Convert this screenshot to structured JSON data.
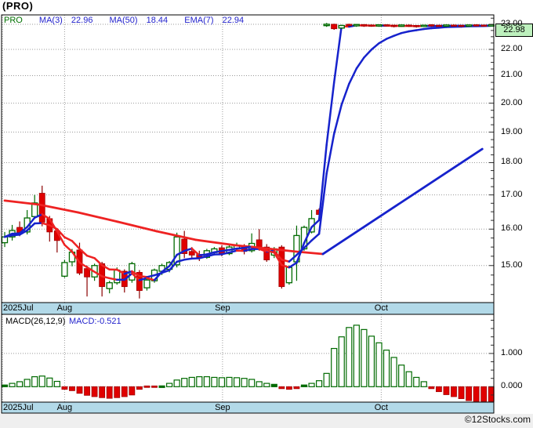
{
  "header": {
    "title": "(PRO)"
  },
  "legend": {
    "symbol": "PRO",
    "items": [
      {
        "label": "MA(3)",
        "value": "22.96"
      },
      {
        "label": "MA(50)",
        "value": "18.44"
      },
      {
        "label": "EMA(7)",
        "value": "22.94"
      }
    ]
  },
  "price_axis": {
    "ticks": [
      {
        "label": "23.00",
        "value": 23
      },
      {
        "label": "22.00",
        "value": 22
      },
      {
        "label": "21.00",
        "value": 21
      },
      {
        "label": "20.00",
        "value": 20
      },
      {
        "label": "19.00",
        "value": 19
      },
      {
        "label": "18.00",
        "value": 18
      },
      {
        "label": "17.00",
        "value": 17
      },
      {
        "label": "16.00",
        "value": 16
      },
      {
        "label": "15.00",
        "value": 15
      }
    ],
    "current_price": "22.98"
  },
  "macd_panel": {
    "label": "MACD(26,12,9)",
    "value_label": "MACD:-0.521",
    "ticks": [
      {
        "label": "1.000",
        "value": 1
      },
      {
        "label": "0.000",
        "value": 0
      }
    ]
  },
  "footer": {
    "watermark": "©12Stocks.com"
  },
  "colors": {
    "up": "#006a00",
    "down": "#e00000",
    "down_wick": "#8a0000",
    "line_up": "#1622cc",
    "line_down": "#ee2222",
    "strip": "#b2d9e8",
    "grid": "#999999",
    "price_box_bg": "#bdf0bd",
    "legend_text": "#2222cc",
    "symbol_text": "#007000",
    "footer_bg": "#efefef"
  },
  "chart_data": {
    "type": "candlestick",
    "title": "(PRO)",
    "y_scale": "log",
    "ylim": [
      14.05,
      23.4
    ],
    "months": [
      {
        "label": "2025Jul",
        "i": 0,
        "align": "left"
      },
      {
        "label": "Aug",
        "i": 8,
        "align": "center"
      },
      {
        "label": "Sep",
        "i": 29.1,
        "align": "center"
      },
      {
        "label": "Oct",
        "i": 50.3,
        "align": "center"
      }
    ],
    "last_close": 22.98,
    "indicators": {
      "ma3": 22.96,
      "ma50": 18.44,
      "ema7": 22.94,
      "macd": -0.521
    },
    "candles": [
      [
        15.62,
        15.92,
        15.5,
        15.78
      ],
      [
        15.78,
        16.12,
        15.68,
        15.96
      ],
      [
        16.05,
        16.22,
        15.8,
        15.9
      ],
      [
        15.92,
        16.55,
        15.85,
        16.32
      ],
      [
        16.36,
        17.0,
        16.3,
        16.76
      ],
      [
        17.05,
        17.28,
        16.08,
        16.2
      ],
      [
        16.3,
        16.38,
        15.65,
        15.92
      ],
      [
        15.95,
        16.02,
        15.35,
        15.68
      ],
      [
        14.72,
        15.15,
        14.68,
        15.08
      ],
      [
        15.1,
        15.45,
        14.98,
        15.36
      ],
      [
        15.42,
        15.62,
        14.75,
        14.8
      ],
      [
        14.92,
        15.0,
        14.2,
        14.7
      ],
      [
        14.7,
        15.05,
        14.6,
        15.0
      ],
      [
        15.05,
        15.1,
        14.2,
        14.45
      ],
      [
        14.4,
        14.6,
        14.28,
        14.55
      ],
      [
        14.55,
        14.95,
        14.5,
        14.88
      ],
      [
        14.85,
        14.9,
        14.3,
        14.45
      ],
      [
        14.62,
        15.1,
        14.55,
        15.05
      ],
      [
        14.82,
        14.88,
        14.15,
        14.35
      ],
      [
        14.42,
        14.68,
        14.35,
        14.62
      ],
      [
        14.6,
        14.92,
        14.55,
        14.88
      ],
      [
        14.85,
        15.05,
        14.75,
        15.0
      ],
      [
        14.9,
        15.12,
        14.82,
        15.08
      ],
      [
        15.02,
        15.9,
        14.95,
        15.78
      ],
      [
        15.72,
        15.95,
        15.2,
        15.32
      ],
      [
        15.38,
        15.5,
        15.18,
        15.28
      ],
      [
        15.3,
        15.4,
        15.12,
        15.22
      ],
      [
        15.22,
        15.45,
        15.18,
        15.4
      ],
      [
        15.35,
        15.5,
        15.28,
        15.45
      ],
      [
        15.48,
        15.55,
        15.25,
        15.32
      ],
      [
        15.32,
        15.55,
        15.28,
        15.5
      ],
      [
        15.45,
        15.62,
        15.38,
        15.55
      ],
      [
        15.52,
        15.58,
        15.3,
        15.38
      ],
      [
        15.4,
        15.88,
        15.35,
        15.6
      ],
      [
        15.7,
        16.0,
        15.4,
        15.45
      ],
      [
        15.5,
        15.58,
        15.1,
        15.15
      ],
      [
        15.28,
        15.5,
        15.2,
        15.45
      ],
      [
        15.5,
        15.55,
        14.4,
        14.45
      ],
      [
        14.55,
        15.0,
        14.5,
        14.95
      ],
      [
        15.1,
        16.1,
        14.6,
        15.82
      ],
      [
        15.45,
        16.1,
        15.4,
        16.05
      ],
      [
        15.92,
        16.55,
        15.88,
        16.3
      ],
      [
        16.55,
        16.6,
        16.35,
        16.42
      ],
      [
        22.95,
        23.05,
        22.9,
        23.0
      ],
      [
        23.0,
        23.02,
        22.78,
        22.82
      ],
      [
        22.85,
        22.98,
        22.82,
        22.95
      ],
      [
        23.0,
        23.02,
        22.92,
        22.94
      ],
      [
        22.94,
        23.0,
        22.9,
        22.99
      ],
      [
        22.99,
        23.0,
        22.9,
        22.93
      ],
      [
        22.97,
        22.99,
        22.9,
        22.92
      ],
      [
        22.93,
        23.0,
        22.9,
        22.98
      ],
      [
        22.98,
        23.0,
        22.91,
        22.93
      ],
      [
        22.96,
        22.98,
        22.88,
        22.91
      ],
      [
        22.92,
        22.99,
        22.9,
        22.97
      ],
      [
        22.97,
        22.99,
        22.9,
        22.92
      ],
      [
        22.95,
        22.97,
        22.87,
        22.9
      ],
      [
        22.91,
        22.98,
        22.89,
        22.96
      ],
      [
        22.98,
        23.0,
        22.91,
        22.93
      ],
      [
        22.96,
        22.98,
        22.9,
        22.92
      ],
      [
        22.93,
        22.99,
        22.91,
        22.97
      ],
      [
        22.97,
        22.99,
        22.92,
        22.93
      ],
      [
        22.96,
        22.97,
        22.9,
        22.92
      ],
      [
        22.93,
        22.99,
        22.91,
        22.97
      ],
      [
        22.98,
        23.0,
        22.93,
        22.94
      ],
      [
        22.97,
        22.98,
        22.91,
        22.93
      ],
      [
        22.94,
        23.0,
        22.92,
        22.98
      ]
    ],
    "macd_hist": [
      0.05,
      0.1,
      0.15,
      0.22,
      0.3,
      0.32,
      0.26,
      0.16,
      -0.08,
      -0.12,
      -0.2,
      -0.26,
      -0.3,
      -0.33,
      -0.35,
      -0.33,
      -0.3,
      -0.25,
      -0.08,
      -0.04,
      -0.02,
      0.03,
      0.1,
      0.2,
      0.25,
      0.28,
      0.3,
      0.3,
      0.28,
      0.27,
      0.28,
      0.27,
      0.25,
      0.22,
      0.15,
      0.1,
      0.07,
      -0.06,
      -0.08,
      -0.06,
      0.05,
      0.1,
      0.18,
      0.4,
      1.15,
      1.5,
      1.78,
      1.85,
      1.72,
      1.52,
      1.32,
      1.1,
      0.88,
      0.65,
      0.45,
      0.28,
      0.15,
      -0.06,
      -0.15,
      -0.24,
      -0.3,
      -0.36,
      -0.42,
      -0.47,
      -0.51,
      -0.521
    ],
    "ma50_points": [
      [
        0,
        16.83
      ],
      [
        4.6,
        16.71
      ],
      [
        9.8,
        16.48
      ],
      [
        15.1,
        16.21
      ],
      [
        20.3,
        15.94
      ],
      [
        25.5,
        15.7
      ],
      [
        30.8,
        15.55
      ],
      [
        35,
        15.46
      ],
      [
        39.2,
        15.37
      ],
      [
        42.5,
        15.31
      ],
      [
        63.8,
        18.44
      ]
    ]
  }
}
